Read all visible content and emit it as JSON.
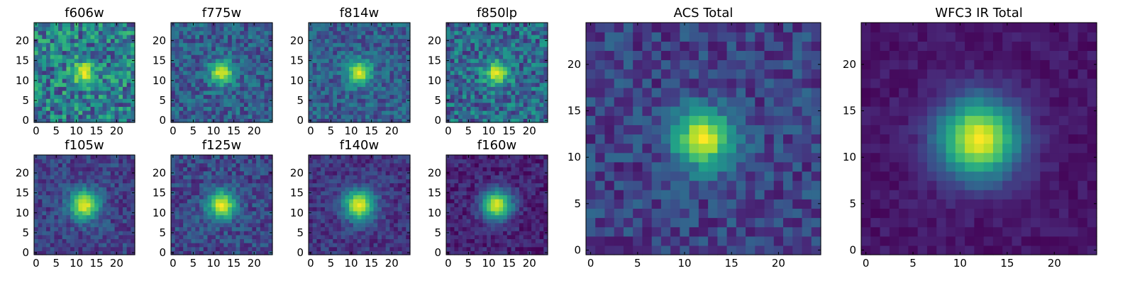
{
  "panels": [
    {
      "id": "f606w",
      "title": "f606w",
      "xticks": [
        0,
        5,
        10,
        15,
        20
      ],
      "yticks": [
        0,
        5,
        10,
        15,
        20
      ],
      "noise": 0.55,
      "peak": 0.95,
      "sigma": 2.0,
      "bg": 0.42,
      "seed": 11
    },
    {
      "id": "f775w",
      "title": "f775w",
      "xticks": [
        0,
        5,
        10,
        15,
        20
      ],
      "yticks": [
        0,
        5,
        10,
        15,
        20
      ],
      "noise": 0.35,
      "peak": 0.95,
      "sigma": 2.1,
      "bg": 0.3,
      "seed": 23
    },
    {
      "id": "f814w",
      "title": "f814w",
      "xticks": [
        0,
        5,
        10,
        15,
        20
      ],
      "yticks": [
        0,
        5,
        10,
        15,
        20
      ],
      "noise": 0.32,
      "peak": 0.95,
      "sigma": 2.1,
      "bg": 0.3,
      "seed": 37
    },
    {
      "id": "f850lp",
      "title": "f850lp",
      "xticks": [
        0,
        5,
        10,
        15,
        20
      ],
      "yticks": [
        0,
        5,
        10,
        15,
        20
      ],
      "noise": 0.45,
      "peak": 0.95,
      "sigma": 2.1,
      "bg": 0.34,
      "seed": 41
    },
    {
      "id": "f105w",
      "title": "f105w",
      "xticks": [
        0,
        5,
        10,
        15,
        20
      ],
      "yticks": [
        0,
        5,
        10,
        15,
        20
      ],
      "noise": 0.25,
      "peak": 0.97,
      "sigma": 2.6,
      "bg": 0.2,
      "seed": 53
    },
    {
      "id": "f125w",
      "title": "f125w",
      "xticks": [
        0,
        5,
        10,
        15,
        20
      ],
      "yticks": [
        0,
        5,
        10,
        15,
        20
      ],
      "noise": 0.28,
      "peak": 0.97,
      "sigma": 2.5,
      "bg": 0.22,
      "seed": 67
    },
    {
      "id": "f140w",
      "title": "f140w",
      "xticks": [
        0,
        5,
        10,
        15,
        20
      ],
      "yticks": [
        0,
        5,
        10,
        15,
        20
      ],
      "noise": 0.22,
      "peak": 0.97,
      "sigma": 2.7,
      "bg": 0.16,
      "seed": 71
    },
    {
      "id": "f160w",
      "title": "f160w",
      "xticks": [
        0,
        5,
        10,
        15,
        20
      ],
      "yticks": [
        0,
        5,
        10,
        15,
        20
      ],
      "noise": 0.2,
      "peak": 0.97,
      "sigma": 2.6,
      "bg": 0.1,
      "seed": 83
    },
    {
      "id": "acs_total",
      "title": "ACS Total",
      "xticks": [
        0,
        5,
        10,
        15,
        20
      ],
      "yticks": [
        0,
        5,
        10,
        15,
        20
      ],
      "noise": 0.28,
      "peak": 0.98,
      "sigma": 2.2,
      "bg": 0.2,
      "seed": 97
    },
    {
      "id": "wfc3_total",
      "title": "WFC3 IR Total",
      "xticks": [
        0,
        5,
        10,
        15,
        20
      ],
      "yticks": [
        0,
        5,
        10,
        15,
        20
      ],
      "noise": 0.1,
      "peak": 0.99,
      "sigma": 3.0,
      "bg": 0.06,
      "seed": 101
    }
  ],
  "image": {
    "nx": 25,
    "ny": 25,
    "center_x": 12,
    "center_y": 12
  },
  "colormap": {
    "name": "viridis",
    "stops": [
      "#440154",
      "#482878",
      "#3e4989",
      "#31688e",
      "#26828e",
      "#1f9e89",
      "#35b779",
      "#6ece58",
      "#b5de2b",
      "#fde725"
    ]
  }
}
